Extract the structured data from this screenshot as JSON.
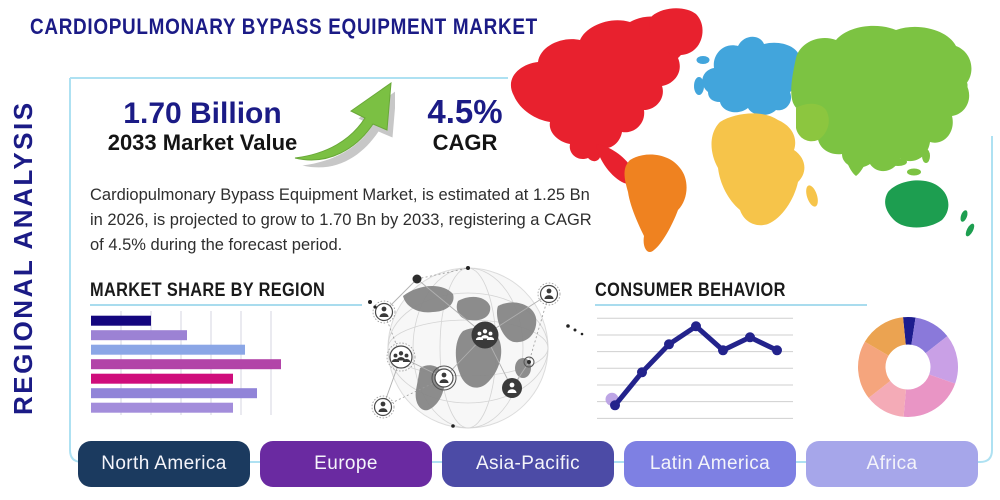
{
  "header": {
    "title": "CARDIOPULMONARY BYPASS EQUIPMENT MARKET"
  },
  "side_label": "REGIONAL ANALYSIS",
  "stats": {
    "market_value": "1.70 Billion",
    "market_value_label": "2033 Market Value",
    "cagr_value": "4.5%",
    "cagr_label": "CAGR"
  },
  "description": "Cardiopulmonary Bypass Equipment Market, is estimated at 1.25 Bn in 2026, is projected to grow to 1.70 Bn by 2033, registering a CAGR of 4.5% during the forecast period.",
  "palette": {
    "navy": "#1b1b86",
    "heading": "#1a1a1a",
    "body": "#2e2e2e",
    "accent_line": "#a9dcee",
    "arrow_green": "#7bc043",
    "arrow_shadow": "#8f8f8f"
  },
  "chart_data": [
    {
      "name": "market-share-by-region",
      "type": "bar",
      "title": "MARKET SHARE BY REGION",
      "orientation": "horizontal",
      "axis_labels_visible": false,
      "grid": "vertical",
      "values_pct_of_axis": [
        30,
        48,
        77,
        95,
        71,
        83,
        71
      ],
      "bar_colors": [
        "#14067e",
        "#9c82d4",
        "#8ba6e6",
        "#b244a8",
        "#cf0d7c",
        "#9184d8",
        "#a38ddb"
      ]
    },
    {
      "name": "consumer-behavior",
      "type": "line",
      "title": "CONSUMER BEHAVIOR",
      "axis_labels_visible": false,
      "grid": "horizontal",
      "ylim": [
        0,
        100
      ],
      "values": [
        13,
        46,
        74,
        92,
        68,
        81,
        68
      ],
      "line_color": "#23238c",
      "marker_color": "#23238c",
      "first_point_highlight_color": "#b9a0e4"
    },
    {
      "name": "regional-share-donut",
      "type": "pie",
      "donut": true,
      "labels_visible": false,
      "values_pct": [
        4,
        12,
        16,
        21,
        13,
        19,
        15
      ],
      "slice_colors": [
        "#1c1c8e",
        "#8a79da",
        "#c9a0e6",
        "#e995c5",
        "#f4abb7",
        "#f5a57d",
        "#eba351"
      ]
    }
  ],
  "map": {
    "region_colors": {
      "north_america": "#e8212e",
      "greenland": "#e8212e",
      "south_america": "#ef8220",
      "europe": "#42a5dc",
      "africa": "#f6c44a",
      "asia": "#7cc342",
      "middle_east": "#8cc63f",
      "australia": "#1d9e50",
      "new_zealand": "#1d9e50"
    }
  },
  "region_buttons": [
    {
      "label": "North America",
      "color": "#1b3a5f"
    },
    {
      "label": "Europe",
      "color": "#6a2aa1"
    },
    {
      "label": "Asia-Pacific",
      "color": "#4c4ba6"
    },
    {
      "label": "Latin America",
      "color": "#7e80e3"
    },
    {
      "label": "Africa",
      "color": "#a6a6ea"
    }
  ]
}
